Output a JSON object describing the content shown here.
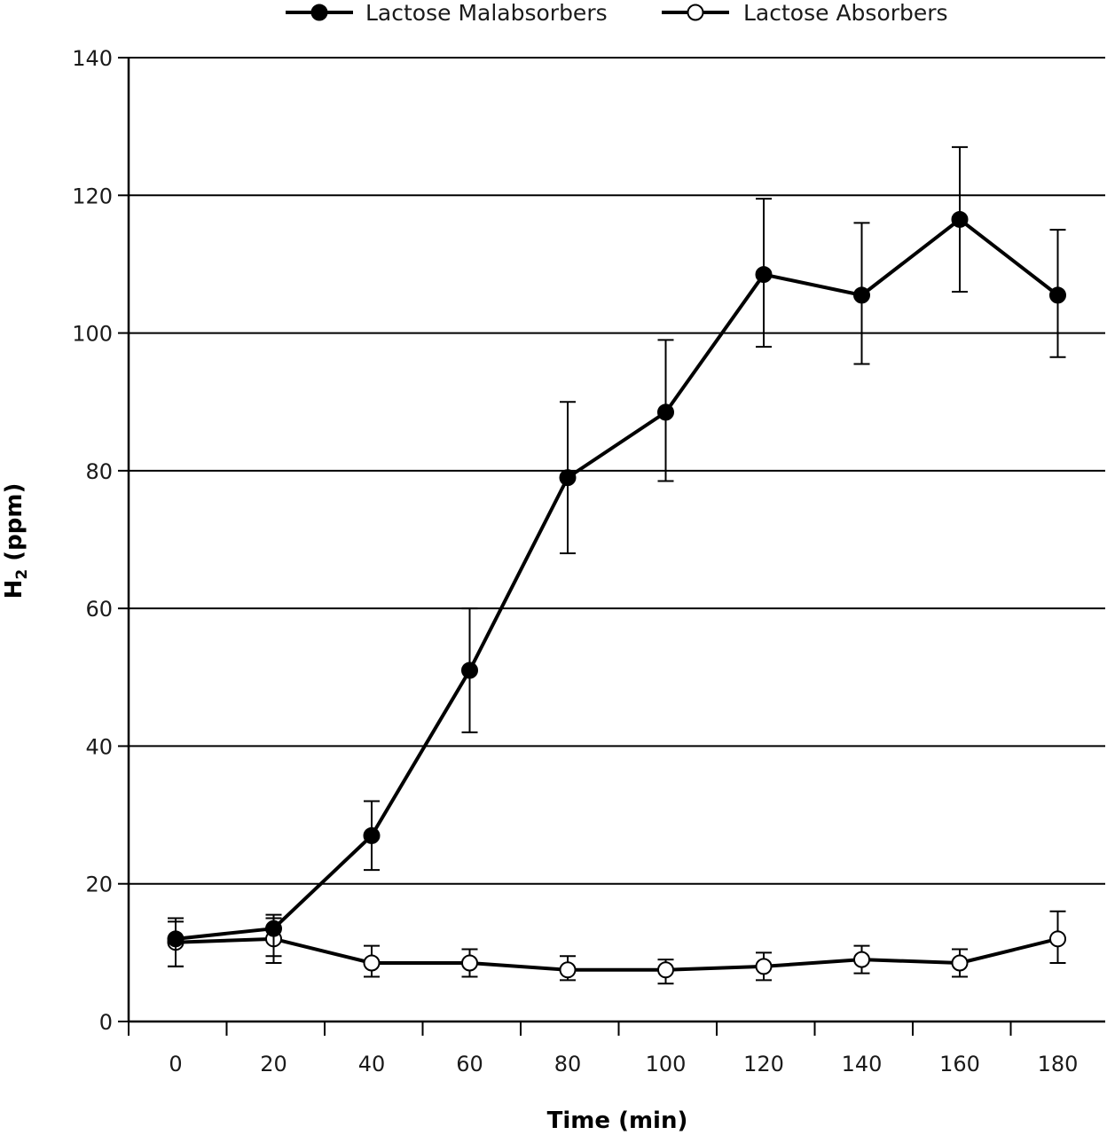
{
  "chart_data": {
    "type": "line",
    "title": "",
    "xlabel": "Time (min)",
    "ylabel_main": "H",
    "ylabel_sub": "2",
    "ylabel_rest": " (ppm)",
    "x": [
      0,
      20,
      40,
      60,
      80,
      100,
      120,
      140,
      160,
      180
    ],
    "x_tick_labels": [
      "0",
      "20",
      "40",
      "60",
      "80",
      "100",
      "120",
      "140",
      "160",
      "180"
    ],
    "y_tick_values": [
      0,
      20,
      40,
      60,
      80,
      100,
      120,
      140
    ],
    "y_tick_labels": [
      "0",
      "20",
      "40",
      "60",
      "80",
      "100",
      "120",
      "140"
    ],
    "ylim": [
      0,
      140
    ],
    "grid": "horizontal",
    "legend_position": "top",
    "series": [
      {
        "name": "Lactose Malabsorbers",
        "marker": "filled-circle",
        "color": "#000000",
        "values": [
          12,
          13.5,
          27,
          51,
          79,
          88.5,
          108.5,
          105.5,
          116.5,
          105.5
        ],
        "err_low": [
          8,
          9.5,
          22,
          42,
          68,
          78.5,
          98,
          95.5,
          106,
          96.5
        ],
        "err_high": [
          15,
          15.5,
          32,
          60,
          90,
          99,
          119.5,
          116,
          127,
          115
        ]
      },
      {
        "name": "Lactose Absorbers",
        "marker": "open-circle",
        "color": "#000000",
        "values": [
          11.5,
          12,
          8.5,
          8.5,
          7.5,
          7.5,
          8,
          9,
          8.5,
          12
        ],
        "err_low": [
          8,
          8.5,
          6.5,
          6.5,
          6,
          5.5,
          6,
          7,
          6.5,
          8.5
        ],
        "err_high": [
          14.5,
          15,
          11,
          10.5,
          9.5,
          9,
          10,
          11,
          10.5,
          16
        ]
      }
    ]
  }
}
